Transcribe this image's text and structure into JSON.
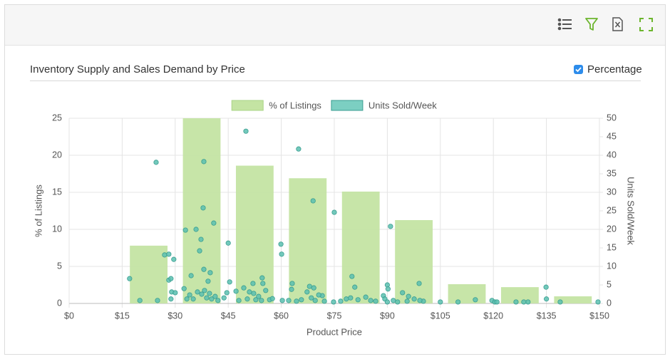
{
  "chart_data": {
    "type": "combo",
    "title": "Inventory Supply and Sales Demand by Price",
    "toggle_label": "Percentage",
    "xlabel": "Product Price",
    "ylabel": "% of Listings",
    "y2label": "Units Sold/Week",
    "xlim": [
      0,
      150
    ],
    "xticks": [
      {
        "value": 0,
        "label": "$0"
      },
      {
        "value": 15,
        "label": "$15"
      },
      {
        "value": 30,
        "label": "$30"
      },
      {
        "value": 45,
        "label": "$45"
      },
      {
        "value": 60,
        "label": "$60"
      },
      {
        "value": 75,
        "label": "$75"
      },
      {
        "value": 90,
        "label": "$90"
      },
      {
        "value": 105,
        "label": "$105"
      },
      {
        "value": 120,
        "label": "$120"
      },
      {
        "value": 135,
        "label": "$135"
      },
      {
        "value": 150,
        "label": "$150"
      }
    ],
    "ylim": [
      0,
      25
    ],
    "yticks": [
      0,
      5,
      10,
      15,
      20,
      25
    ],
    "y2lim": [
      0,
      50
    ],
    "y2ticks": [
      0,
      5,
      10,
      15,
      20,
      25,
      30,
      35,
      40,
      45,
      50
    ],
    "grid": true,
    "legend": "top",
    "series": [
      {
        "name": "% of Listings",
        "type": "bar",
        "color": "#c4e4a3",
        "x": [
          22.5,
          37.5,
          52.5,
          67.5,
          82.5,
          97.5,
          112.5,
          127.5,
          142.5
        ],
        "values": [
          7.8,
          25,
          18.6,
          16.9,
          15.1,
          11.25,
          2.6,
          2.2,
          0.96
        ]
      },
      {
        "name": "Units Sold/Week",
        "type": "scatter",
        "axis": "y2",
        "color": "#5bbfb0",
        "x": [
          17.1,
          20,
          24.6,
          25,
          27,
          28.2,
          28.2,
          28.8,
          29.6,
          29,
          30,
          28.8,
          32.9,
          34.5,
          35.9,
          38.1,
          37.9,
          37.3,
          36.9,
          38.1,
          40.9,
          39.9,
          39.3,
          45,
          50,
          51,
          52.2,
          54.6,
          54.8,
          59.9,
          60.1,
          64.9,
          63.1,
          69,
          68,
          69.2,
          71.6,
          75,
          80,
          80.8,
          90.9,
          90,
          90.2,
          99,
          96,
          100.2,
          114.9,
          119.6,
          134.9,
          129.8,
          105,
          110,
          126.4,
          120.4,
          121,
          128.6,
          138.9,
          149.6,
          135,
          32.5,
          33.3,
          34.1,
          35.1,
          36.3,
          37.5,
          38.3,
          38.9,
          39.7,
          40.3,
          41.3,
          42.1,
          43.8,
          44.6,
          45.4,
          47.2,
          48,
          49.4,
          50.4,
          52,
          52.8,
          53.6,
          54.4,
          55.6,
          56.7,
          57.5,
          60.3,
          62.1,
          62.9,
          64.3,
          65.7,
          67.3,
          68.5,
          69.6,
          70.6,
          72.2,
          74.8,
          76.8,
          78.4,
          79.6,
          81.7,
          83.9,
          85.3,
          86.7,
          88.9,
          89.3,
          90,
          91.7,
          92.9,
          94.3,
          95.6,
          97.6,
          99.2
        ],
        "values": [
          6.7,
          0.8,
          38.1,
          0.8,
          13.1,
          13.3,
          6.3,
          6.7,
          11.9,
          3.1,
          2.9,
          1.2,
          19.8,
          7.5,
          20,
          38.3,
          25.8,
          17.3,
          14.2,
          9.2,
          21.7,
          8.3,
          6,
          16.3,
          46.5,
          3.1,
          2.7,
          6.9,
          5.4,
          16,
          13.3,
          41.7,
          5.4,
          27.7,
          4.6,
          4.2,
          2.1,
          24.6,
          7.3,
          4.4,
          20.8,
          5,
          3.9,
          5.4,
          1.9,
          0.6,
          1,
          0.8,
          4.4,
          0.4,
          0.4,
          0.4,
          0.4,
          0.4,
          0.4,
          0.4,
          0.4,
          0.4,
          1.2,
          4,
          1.2,
          2.3,
          1.2,
          3.1,
          2.5,
          3.5,
          1.5,
          2.7,
          1.2,
          1.9,
          0.8,
          1.5,
          2.9,
          5.8,
          3.3,
          0.8,
          4.2,
          1.2,
          5.4,
          1,
          1.9,
          0.8,
          3.5,
          1,
          1.3,
          0.8,
          0.8,
          3.8,
          0.6,
          1,
          3.1,
          1.5,
          0.8,
          2.3,
          0.6,
          0.4,
          0.6,
          1.2,
          1.5,
          1,
          1.7,
          0.8,
          0.6,
          2.1,
          1.2,
          0.4,
          0.8,
          0.4,
          2.9,
          0.6,
          1.2,
          0.8
        ]
      }
    ]
  }
}
